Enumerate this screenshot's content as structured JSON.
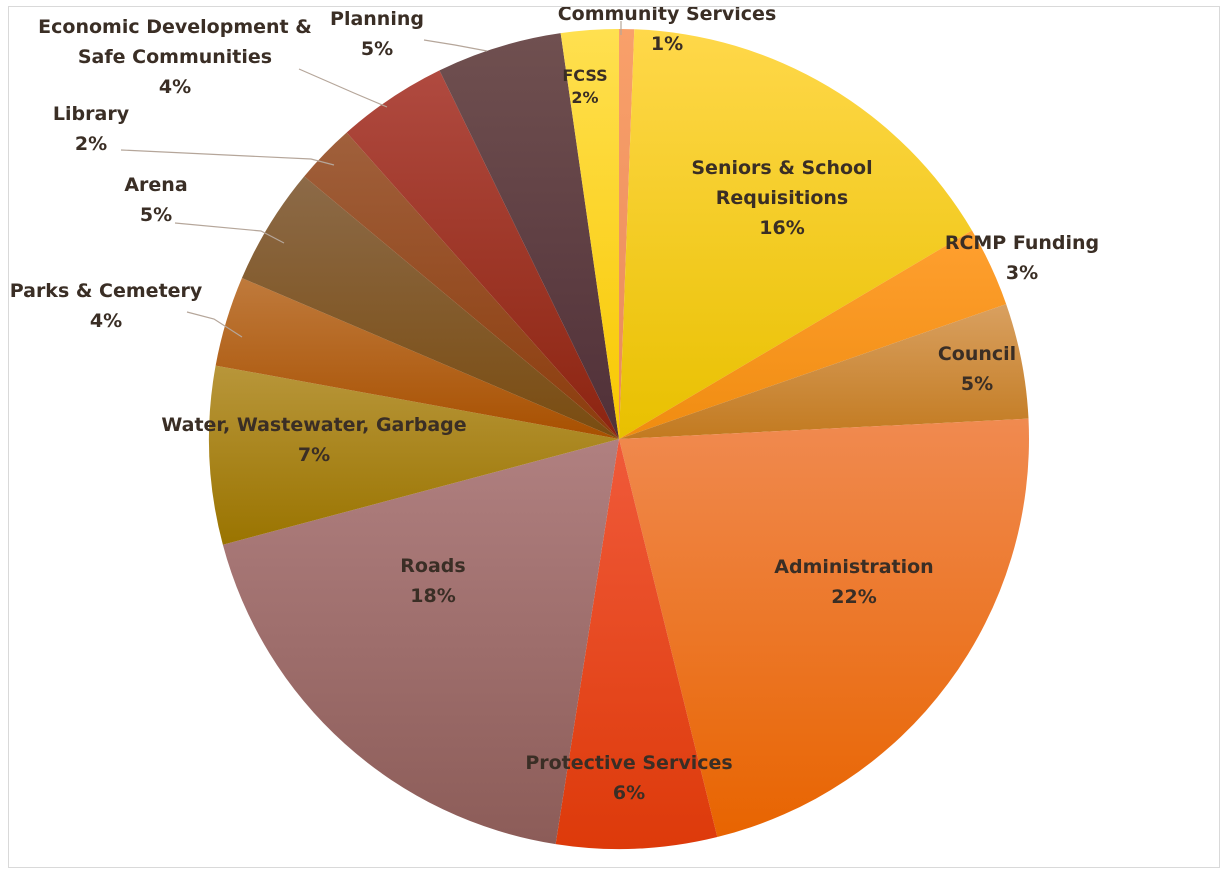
{
  "chart_data": {
    "type": "pie",
    "slices": [
      {
        "label": "Community Services",
        "percent_label": "1%",
        "value": 0.6,
        "colors": [
          "#f9a06a",
          "#e88a5a"
        ]
      },
      {
        "label": "Seniors & School Requisitions",
        "percent_label": "16%",
        "value": 16.1,
        "colors": [
          "#ffd84a",
          "#e8c000"
        ]
      },
      {
        "label": "RCMP Funding",
        "percent_label": "3%",
        "value": 3.2,
        "colors": [
          "#ffa030",
          "#f08c10"
        ]
      },
      {
        "label": "Council",
        "percent_label": "5%",
        "value": 4.6,
        "colors": [
          "#d9a060",
          "#c27a20"
        ]
      },
      {
        "label": "Administration",
        "percent_label": "22%",
        "value": 22.2,
        "colors": [
          "#f08a50",
          "#e86400"
        ]
      },
      {
        "label": "Protective Services",
        "percent_label": "6%",
        "value": 6.4,
        "colors": [
          "#f05a3a",
          "#dd3a0a"
        ]
      },
      {
        "label": "Roads",
        "percent_label": "18%",
        "value": 18.6,
        "colors": [
          "#b08080",
          "#8c5c58"
        ]
      },
      {
        "label": "Water, Wastewater, Garbage",
        "percent_label": "7%",
        "value": 7.1,
        "colors": [
          "#b8963a",
          "#9a7400"
        ]
      },
      {
        "label": "Parks & Cemetery",
        "percent_label": "4%",
        "value": 3.6,
        "colors": [
          "#bf7a3c",
          "#a85000"
        ]
      },
      {
        "label": "Arena",
        "percent_label": "5%",
        "value": 4.7,
        "colors": [
          "#8c6a48",
          "#7a4c10"
        ]
      },
      {
        "label": "Library",
        "percent_label": "2%",
        "value": 2.4,
        "colors": [
          "#a0603c",
          "#8c3c0c"
        ]
      },
      {
        "label": "Economic Development & Safe Communities",
        "percent_label": "4%",
        "value": 4.4,
        "colors": [
          "#b04a40",
          "#8c2410"
        ]
      },
      {
        "label": "Planning",
        "percent_label": "5%",
        "value": 5.0,
        "colors": [
          "#705050",
          "#503038"
        ]
      },
      {
        "label": "FCSS",
        "percent_label": "2%",
        "value": 2.3,
        "colors": [
          "#ffe050",
          "#f8c800"
        ]
      }
    ]
  }
}
